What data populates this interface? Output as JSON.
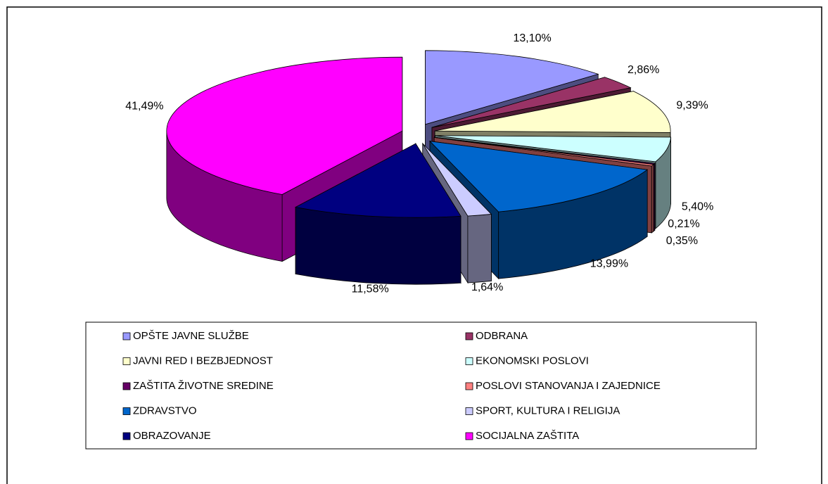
{
  "chart_data": {
    "type": "pie",
    "categories": [
      "OPŠTE JAVNE SLUŽBE",
      "ODBRANA",
      "JAVNI RED I BEZBJEDNOST",
      "EKONOMSKI POSLOVI",
      "ZAŠTITA ŽIVOTNE SREDINE",
      "POSLOVI STANOVANJA I ZAJEDNICE",
      "ZDRAVSTVO",
      "SPORT, KULTURA I RELIGIJA",
      "OBRAZOVANJE",
      "SOCIJALNA ZAŠTITA"
    ],
    "values": [
      13.1,
      2.86,
      9.39,
      5.4,
      0.21,
      0.35,
      13.99,
      1.64,
      11.58,
      41.49
    ],
    "value_labels": [
      "13,10%",
      "2,86%",
      "9,39%",
      "5,40%",
      "0,21%",
      "0,35%",
      "13,99%",
      "1,64%",
      "11,58%",
      "41,49%"
    ],
    "colors": [
      "#9999ff",
      "#993366",
      "#ffffcc",
      "#ccffff",
      "#660066",
      "#ff8080",
      "#0066cc",
      "#ccccff",
      "#000080",
      "#ff00ff"
    ],
    "legend": "bottom"
  }
}
